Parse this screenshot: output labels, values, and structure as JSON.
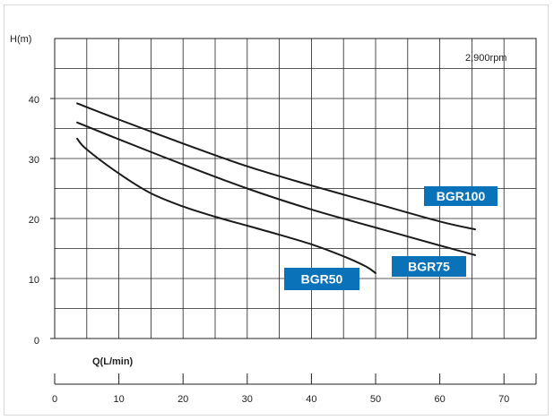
{
  "chart_data": {
    "type": "line",
    "title": "",
    "xlabel": "Q(L/min)",
    "ylabel": "H(m)",
    "annotation": "2,900rpm",
    "xlim": [
      0,
      75
    ],
    "ylim": [
      0,
      50
    ],
    "x_ticks": [
      "0",
      "10",
      "20",
      "30",
      "40",
      "50",
      "60",
      "70"
    ],
    "y_ticks": [
      "0",
      "10",
      "20",
      "30",
      "40"
    ],
    "grid": true,
    "series": [
      {
        "name": "BGR100",
        "color": "#1a1a1a",
        "x": [
          3.5,
          10,
          20,
          30,
          40,
          50,
          60,
          65.5
        ],
        "y": [
          39.2,
          36.5,
          32.5,
          28.7,
          25.5,
          22.5,
          19.5,
          18.2
        ]
      },
      {
        "name": "BGR75",
        "color": "#1a1a1a",
        "x": [
          3.5,
          10,
          20,
          30,
          40,
          50,
          60,
          65.5
        ],
        "y": [
          36,
          33.2,
          29,
          25,
          21.5,
          18.5,
          15.5,
          13.9
        ]
      },
      {
        "name": "BGR50",
        "color": "#1a1a1a",
        "x": [
          3.5,
          5,
          10,
          15,
          20,
          25,
          30,
          35,
          40,
          45,
          48.5,
          50
        ],
        "y": [
          33.3,
          31.5,
          27.5,
          24.2,
          22,
          20.3,
          18.8,
          17.3,
          15.7,
          13.7,
          12,
          10.9
        ]
      }
    ],
    "labels": [
      {
        "series": "BGR100",
        "text": "BGR100",
        "color": "#0a72b8"
      },
      {
        "series": "BGR75",
        "text": "BGR75",
        "color": "#0a72b8"
      },
      {
        "series": "BGR50",
        "text": "BGR50",
        "color": "#0a72b8"
      }
    ]
  }
}
